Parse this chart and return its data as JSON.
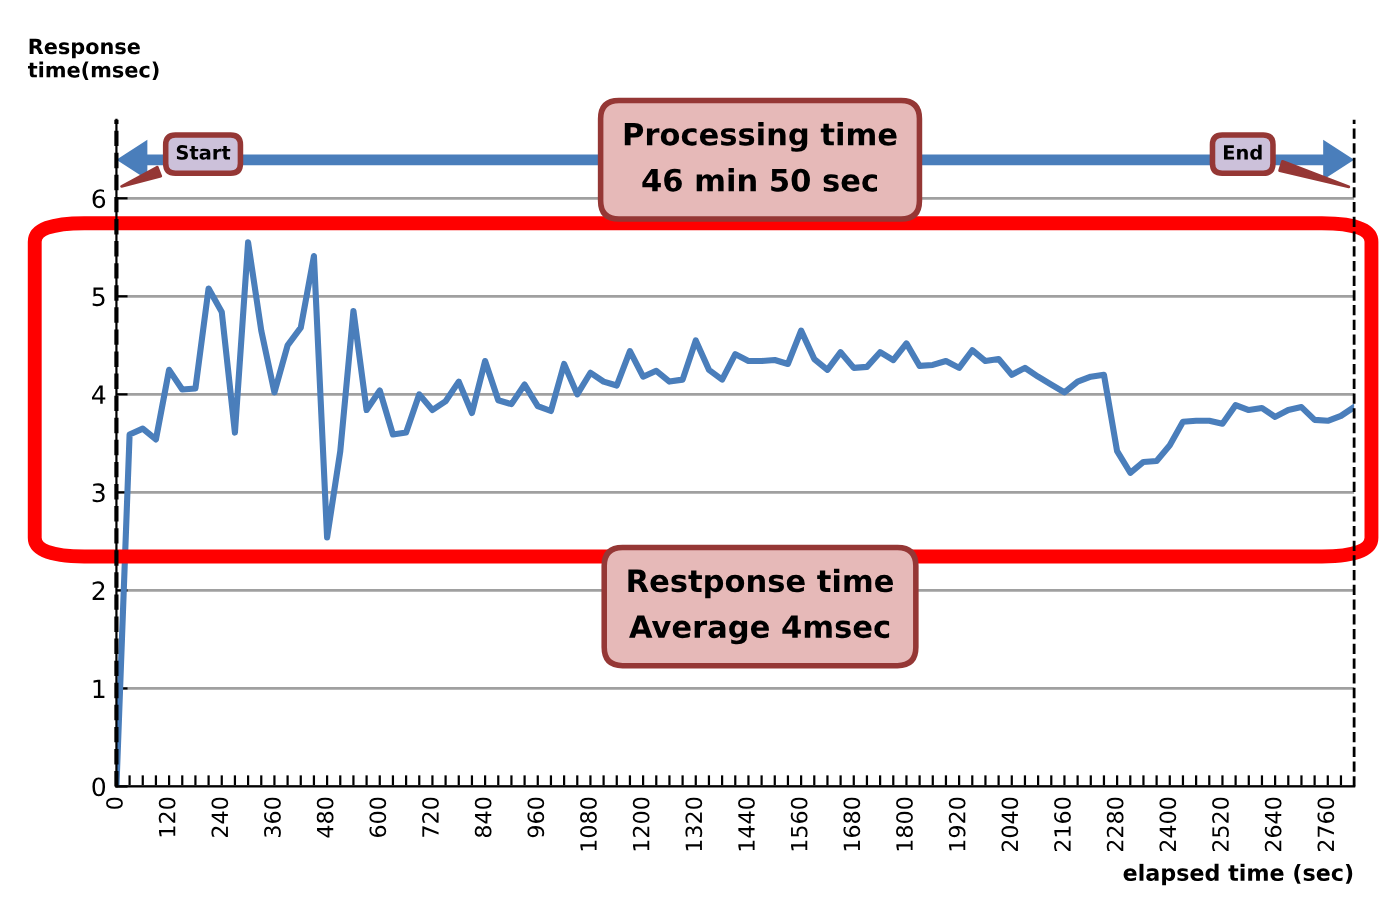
{
  "chart_data": {
    "type": "line",
    "xlabel": "elapsed time (sec)",
    "ylabel": "Response\ntime(msec)",
    "x": [
      0,
      30,
      60,
      90,
      120,
      150,
      180,
      210,
      240,
      270,
      300,
      330,
      360,
      390,
      420,
      450,
      480,
      510,
      540,
      570,
      600,
      630,
      660,
      690,
      720,
      750,
      780,
      810,
      840,
      870,
      900,
      930,
      960,
      990,
      1020,
      1050,
      1080,
      1110,
      1140,
      1170,
      1200,
      1230,
      1260,
      1290,
      1320,
      1350,
      1380,
      1410,
      1440,
      1470,
      1500,
      1530,
      1560,
      1590,
      1620,
      1650,
      1680,
      1710,
      1740,
      1770,
      1800,
      1830,
      1860,
      1890,
      1920,
      1950,
      1980,
      2010,
      2040,
      2070,
      2100,
      2130,
      2160,
      2190,
      2220,
      2250,
      2280,
      2310,
      2340,
      2370,
      2400,
      2430,
      2460,
      2490,
      2520,
      2550,
      2580,
      2610,
      2640,
      2670,
      2700,
      2730,
      2760,
      2790,
      2820
    ],
    "series": [
      {
        "color": "#4a7ebb",
        "values": [
          0,
          3.59,
          3.65,
          3.54,
          4.25,
          4.05,
          4.06,
          5.08,
          4.84,
          3.61,
          5.55,
          4.65,
          4.02,
          4.5,
          4.68,
          5.41,
          2.54,
          3.42,
          4.85,
          3.84,
          4.04,
          3.59,
          3.61,
          4.0,
          3.84,
          3.93,
          4.13,
          3.81,
          4.34,
          3.94,
          3.9,
          4.1,
          3.88,
          3.83,
          4.31,
          4.0,
          4.22,
          4.13,
          4.09,
          4.44,
          4.18,
          4.24,
          4.13,
          4.15,
          4.55,
          4.25,
          4.15,
          4.41,
          4.34,
          4.34,
          4.35,
          4.31,
          4.65,
          4.36,
          4.25,
          4.43,
          4.27,
          4.28,
          4.43,
          4.35,
          4.52,
          4.29,
          4.3,
          4.34,
          4.27,
          4.45,
          4.34,
          4.36,
          4.2,
          4.27,
          4.18,
          4.1,
          4.02,
          4.13,
          4.18,
          4.2,
          3.42,
          3.2,
          3.31,
          3.32,
          3.48,
          3.72,
          3.73,
          3.73,
          3.7,
          3.89,
          3.84,
          3.86,
          3.77,
          3.84,
          3.87,
          3.74,
          3.73,
          3.78,
          3.87
        ]
      }
    ],
    "xlim": [
      0,
      2820
    ],
    "ylim": [
      0,
      6.8
    ],
    "yticks": [
      0,
      1,
      2,
      3,
      4,
      5,
      6
    ],
    "xticks": [
      0,
      {
        "value": 30,
        "label": null
      },
      {
        "value": 60,
        "label": null
      },
      {
        "value": 90,
        "label": null
      },
      120,
      {
        "value": 150,
        "label": null
      },
      {
        "value": 180,
        "label": null
      },
      {
        "value": 210,
        "label": null
      },
      240,
      {
        "value": 270,
        "label": null
      },
      {
        "value": 300,
        "label": null
      },
      {
        "value": 330,
        "label": null
      },
      360,
      {
        "value": 390,
        "label": null
      },
      {
        "value": 420,
        "label": null
      },
      {
        "value": 450,
        "label": null
      },
      480,
      {
        "value": 510,
        "label": null
      },
      {
        "value": 540,
        "label": null
      },
      {
        "value": 570,
        "label": null
      },
      600,
      {
        "value": 630,
        "label": null
      },
      {
        "value": 660,
        "label": null
      },
      {
        "value": 690,
        "label": null
      },
      720,
      {
        "value": 750,
        "label": null
      },
      {
        "value": 780,
        "label": null
      },
      {
        "value": 810,
        "label": null
      },
      840,
      {
        "value": 870,
        "label": null
      },
      {
        "value": 900,
        "label": null
      },
      {
        "value": 930,
        "label": null
      },
      960,
      {
        "value": 990,
        "label": null
      },
      {
        "value": 1020,
        "label": null
      },
      {
        "value": 1050,
        "label": null
      },
      1080,
      {
        "value": 1110,
        "label": null
      },
      {
        "value": 1140,
        "label": null
      },
      {
        "value": 1170,
        "label": null
      },
      1200,
      {
        "value": 1230,
        "label": null
      },
      {
        "value": 1260,
        "label": null
      },
      {
        "value": 1290,
        "label": null
      },
      1320,
      {
        "value": 1350,
        "label": null
      },
      {
        "value": 1380,
        "label": null
      },
      {
        "value": 1410,
        "label": null
      },
      1440,
      {
        "value": 1470,
        "label": null
      },
      {
        "value": 1500,
        "label": null
      },
      {
        "value": 1530,
        "label": null
      },
      1560,
      {
        "value": 1590,
        "label": null
      },
      {
        "value": 1620,
        "label": null
      },
      {
        "value": 1650,
        "label": null
      },
      1680,
      {
        "value": 1710,
        "label": null
      },
      {
        "value": 1740,
        "label": null
      },
      {
        "value": 1770,
        "label": null
      },
      1800,
      {
        "value": 1830,
        "label": null
      },
      {
        "value": 1860,
        "label": null
      },
      {
        "value": 1890,
        "label": null
      },
      1920,
      {
        "value": 1950,
        "label": null
      },
      {
        "value": 1980,
        "label": null
      },
      {
        "value": 2010,
        "label": null
      },
      2040,
      {
        "value": 2070,
        "label": null
      },
      {
        "value": 2100,
        "label": null
      },
      {
        "value": 2130,
        "label": null
      },
      2160,
      {
        "value": 2190,
        "label": null
      },
      {
        "value": 2220,
        "label": null
      },
      {
        "value": 2250,
        "label": null
      },
      2280,
      {
        "value": 2310,
        "label": null
      },
      {
        "value": 2340,
        "label": null
      },
      {
        "value": 2370,
        "label": null
      },
      2400,
      {
        "value": 2430,
        "label": null
      },
      {
        "value": 2460,
        "label": null
      },
      {
        "value": 2490,
        "label": null
      },
      2520,
      {
        "value": 2550,
        "label": null
      },
      {
        "value": 2580,
        "label": null
      },
      {
        "value": 2610,
        "label": null
      },
      2640,
      {
        "value": 2670,
        "label": null
      },
      {
        "value": 2700,
        "label": null
      },
      {
        "value": 2730,
        "label": null
      },
      2760,
      {
        "value": 2790,
        "label": null
      }
    ],
    "grid": "y",
    "marker": "none",
    "line_style": "solid",
    "ref_lines": [
      {
        "axis": "x",
        "value": 0,
        "label": "Start",
        "color": "#000000",
        "line_style": "dashed"
      },
      {
        "axis": "x",
        "value": 2820,
        "label": "End",
        "color": "#000000",
        "line_style": "dashed"
      }
    ],
    "annotations": [
      "Processing time\n46 min 50 sec",
      "Restponse time\nAverage 4msec"
    ]
  }
}
